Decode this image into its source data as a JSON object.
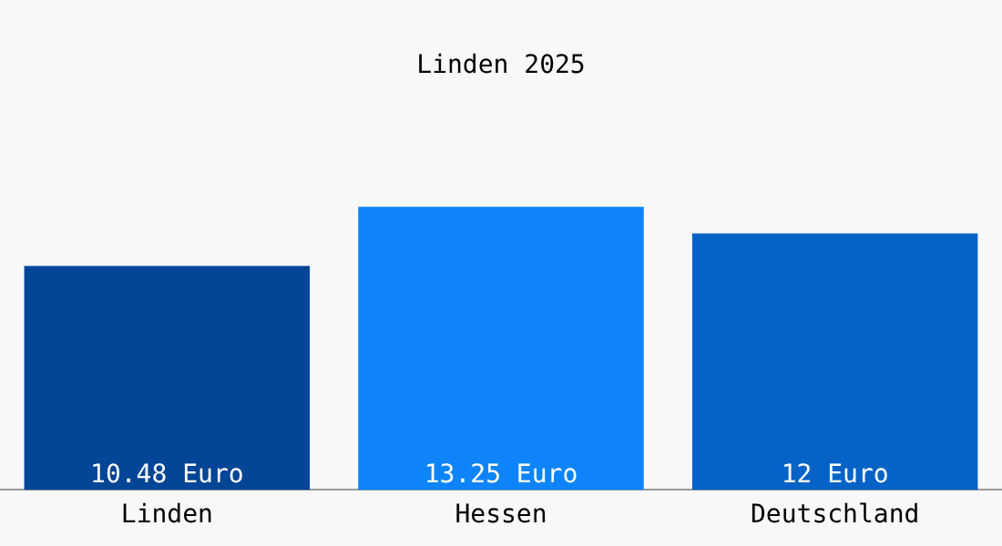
{
  "chart_data": {
    "type": "bar",
    "title": "Linden 2025",
    "categories": [
      "Linden",
      "Hessen",
      "Deutschland"
    ],
    "values": [
      10.48,
      13.25,
      12
    ],
    "colors": [
      "#034596",
      "#0d84f9",
      "#0563c7"
    ],
    "value_labels": [
      "10.48 Euro",
      "13.25 Euro",
      "12 Euro"
    ],
    "grid": false,
    "legend": false
  }
}
